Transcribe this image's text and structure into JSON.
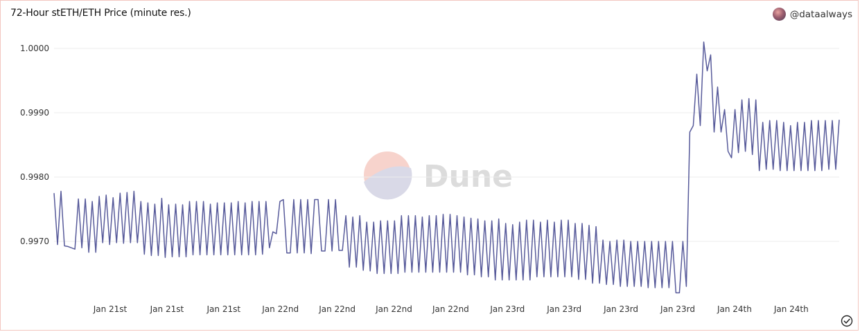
{
  "header": {
    "title": "72-Hour stETH/ETH Price (minute res.)",
    "author": "@dataalways"
  },
  "watermark": {
    "text": "Dune"
  },
  "colors": {
    "line": "#575a9a",
    "grid": "#ececec",
    "border": "#f3c6bf"
  },
  "icons": {
    "author_avatar": "avatar-icon",
    "status": "check-circle-icon"
  },
  "chart_data": {
    "type": "line",
    "title": "72-Hour stETH/ETH Price (minute res.)",
    "xlabel": "",
    "ylabel": "",
    "grid": true,
    "ylim": [
      0.9962,
      1.0003
    ],
    "yticks": [
      "0.9970",
      "0.9980",
      "0.9990",
      "1.0000"
    ],
    "xticks": [
      "Jan 21st",
      "Jan 21st",
      "Jan 21st",
      "Jan 22nd",
      "Jan 22nd",
      "Jan 22nd",
      "Jan 22nd",
      "Jan 23rd",
      "Jan 23rd",
      "Jan 23rd",
      "Jan 23rd",
      "Jan 24th",
      "Jan 24th"
    ],
    "series": [
      {
        "values": [
          0.99775,
          0.99695,
          0.99778,
          0.99693,
          0.99692,
          0.9969,
          0.99688,
          0.99766,
          0.9969,
          0.99766,
          0.99683,
          0.99762,
          0.99683,
          0.9977,
          0.99698,
          0.99772,
          0.99695,
          0.99768,
          0.99698,
          0.99775,
          0.99697,
          0.99776,
          0.99698,
          0.99778,
          0.99698,
          0.99762,
          0.9968,
          0.9976,
          0.99678,
          0.99758,
          0.99678,
          0.99767,
          0.99675,
          0.99757,
          0.99676,
          0.99758,
          0.99676,
          0.99757,
          0.99676,
          0.99762,
          0.99679,
          0.99762,
          0.99679,
          0.99762,
          0.99679,
          0.99758,
          0.99679,
          0.9976,
          0.99679,
          0.9976,
          0.99679,
          0.9976,
          0.99679,
          0.99762,
          0.99679,
          0.9976,
          0.99679,
          0.99762,
          0.99679,
          0.99762,
          0.9968,
          0.99762,
          0.9969,
          0.99715,
          0.99712,
          0.99762,
          0.99765,
          0.99682,
          0.99682,
          0.99765,
          0.99682,
          0.99765,
          0.99682,
          0.99765,
          0.99681,
          0.99765,
          0.99765,
          0.99685,
          0.99685,
          0.99765,
          0.99685,
          0.99765,
          0.99686,
          0.99686,
          0.9974,
          0.9966,
          0.99738,
          0.9966,
          0.9974,
          0.99655,
          0.9973,
          0.99654,
          0.9973,
          0.9965,
          0.99732,
          0.9965,
          0.99732,
          0.9965,
          0.99732,
          0.9965,
          0.9974,
          0.99652,
          0.9974,
          0.99652,
          0.9974,
          0.99652,
          0.99738,
          0.99652,
          0.9974,
          0.99652,
          0.9974,
          0.99652,
          0.99742,
          0.99652,
          0.99742,
          0.99652,
          0.9974,
          0.99652,
          0.99738,
          0.99648,
          0.99736,
          0.99648,
          0.99735,
          0.99645,
          0.99732,
          0.99645,
          0.99732,
          0.9964,
          0.99735,
          0.9964,
          0.99728,
          0.9964,
          0.99726,
          0.9964,
          0.9973,
          0.9964,
          0.99733,
          0.9964,
          0.99733,
          0.99645,
          0.9973,
          0.99645,
          0.99733,
          0.99645,
          0.9973,
          0.99645,
          0.99733,
          0.99645,
          0.99733,
          0.99645,
          0.99728,
          0.99641,
          0.99728,
          0.99641,
          0.99725,
          0.99635,
          0.99723,
          0.99635,
          0.99702,
          0.99633,
          0.997,
          0.99633,
          0.99702,
          0.9963,
          0.99702,
          0.9963,
          0.997,
          0.9963,
          0.997,
          0.9963,
          0.997,
          0.99628,
          0.997,
          0.99628,
          0.997,
          0.99628,
          0.997,
          0.99628,
          0.997,
          0.9962,
          0.9962,
          0.997,
          0.9963,
          0.9987,
          0.9988,
          0.9996,
          0.9988,
          1.0001,
          0.99965,
          0.9999,
          0.9987,
          0.9994,
          0.9987,
          0.99905,
          0.9984,
          0.9983,
          0.99905,
          0.99838,
          0.9992,
          0.9984,
          0.99922,
          0.99835,
          0.9992,
          0.9981,
          0.99885,
          0.99812,
          0.99888,
          0.99812,
          0.99888,
          0.9981,
          0.99885,
          0.9981,
          0.9988,
          0.9981,
          0.99885,
          0.9981,
          0.99885,
          0.9981,
          0.99888,
          0.9981,
          0.99888,
          0.9981,
          0.99888,
          0.99812,
          0.99888,
          0.99812,
          0.99889
        ]
      }
    ]
  }
}
